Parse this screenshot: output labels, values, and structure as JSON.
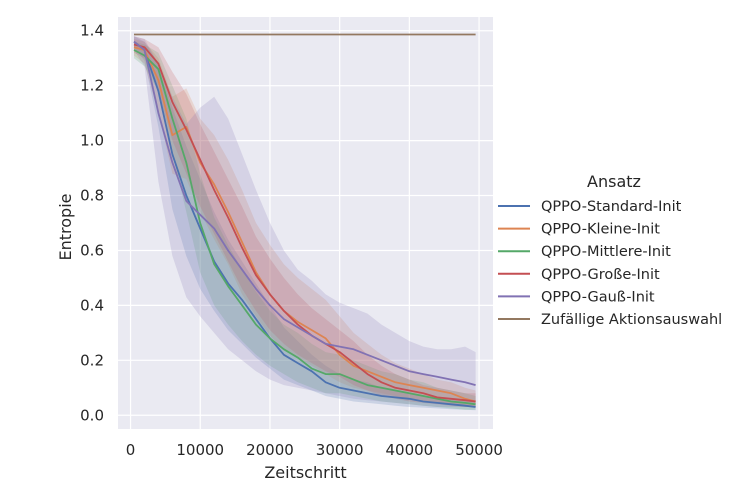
{
  "chart_data": {
    "type": "line",
    "xlabel": "Zeitschritt",
    "ylabel": "Entropie",
    "xlim": [
      -1800,
      52000
    ],
    "ylim": [
      -0.05,
      1.45
    ],
    "xticks": [
      0,
      10000,
      20000,
      30000,
      40000,
      50000
    ],
    "yticks": [
      0.0,
      0.2,
      0.4,
      0.6,
      0.8,
      1.0,
      1.2,
      1.4
    ],
    "grid": true,
    "background": "#EAEAF2",
    "legend": {
      "title": "Ansatz",
      "position": "right-outside"
    },
    "x": [
      500,
      2000,
      4000,
      6000,
      8000,
      10000,
      12000,
      14000,
      16000,
      18000,
      20000,
      22000,
      24000,
      26000,
      28000,
      30000,
      32000,
      34000,
      36000,
      38000,
      40000,
      42000,
      44000,
      46000,
      48000,
      49500
    ],
    "series": [
      {
        "name": "QPPO-Standard-Init",
        "color": "#4C72B0",
        "values": [
          1.36,
          1.33,
          1.18,
          0.95,
          0.8,
          0.68,
          0.56,
          0.48,
          0.42,
          0.35,
          0.28,
          0.22,
          0.19,
          0.16,
          0.12,
          0.1,
          0.09,
          0.08,
          0.07,
          0.065,
          0.06,
          0.05,
          0.045,
          0.04,
          0.035,
          0.03
        ],
        "lower": [
          1.34,
          1.29,
          1.05,
          0.75,
          0.58,
          0.46,
          0.38,
          0.31,
          0.26,
          0.21,
          0.17,
          0.13,
          0.11,
          0.09,
          0.07,
          0.06,
          0.05,
          0.045,
          0.04,
          0.035,
          0.03,
          0.028,
          0.025,
          0.022,
          0.02,
          0.018
        ],
        "upper": [
          1.38,
          1.36,
          1.28,
          1.12,
          0.98,
          0.86,
          0.74,
          0.64,
          0.56,
          0.48,
          0.4,
          0.32,
          0.27,
          0.22,
          0.18,
          0.15,
          0.13,
          0.12,
          0.1,
          0.09,
          0.08,
          0.07,
          0.065,
          0.06,
          0.055,
          0.05
        ]
      },
      {
        "name": "QPPO-Kleine-Init",
        "color": "#DD8452",
        "values": [
          1.34,
          1.33,
          1.22,
          1.02,
          1.05,
          0.92,
          0.84,
          0.74,
          0.63,
          0.52,
          0.44,
          0.38,
          0.34,
          0.31,
          0.28,
          0.22,
          0.18,
          0.16,
          0.14,
          0.12,
          0.11,
          0.1,
          0.09,
          0.08,
          0.06,
          0.05
        ],
        "lower": [
          1.31,
          1.28,
          1.1,
          0.88,
          0.86,
          0.74,
          0.64,
          0.55,
          0.44,
          0.36,
          0.29,
          0.24,
          0.21,
          0.18,
          0.15,
          0.12,
          0.1,
          0.09,
          0.08,
          0.07,
          0.06,
          0.05,
          0.045,
          0.04,
          0.035,
          0.03
        ],
        "upper": [
          1.37,
          1.36,
          1.3,
          1.16,
          1.19,
          1.08,
          1.02,
          0.93,
          0.82,
          0.7,
          0.62,
          0.55,
          0.5,
          0.46,
          0.42,
          0.36,
          0.3,
          0.26,
          0.22,
          0.19,
          0.17,
          0.15,
          0.13,
          0.12,
          0.1,
          0.09
        ]
      },
      {
        "name": "QPPO-Mittlere-Init",
        "color": "#55A868",
        "values": [
          1.33,
          1.31,
          1.26,
          1.08,
          0.92,
          0.7,
          0.55,
          0.47,
          0.4,
          0.33,
          0.28,
          0.24,
          0.21,
          0.17,
          0.15,
          0.15,
          0.13,
          0.11,
          0.1,
          0.09,
          0.08,
          0.07,
          0.06,
          0.05,
          0.045,
          0.04
        ],
        "lower": [
          1.3,
          1.27,
          1.18,
          0.95,
          0.74,
          0.52,
          0.4,
          0.33,
          0.27,
          0.22,
          0.18,
          0.15,
          0.12,
          0.1,
          0.08,
          0.08,
          0.07,
          0.06,
          0.05,
          0.045,
          0.04,
          0.035,
          0.03,
          0.025,
          0.02,
          0.02
        ],
        "upper": [
          1.36,
          1.35,
          1.32,
          1.2,
          1.08,
          0.88,
          0.72,
          0.62,
          0.53,
          0.45,
          0.38,
          0.33,
          0.3,
          0.26,
          0.23,
          0.22,
          0.2,
          0.18,
          0.16,
          0.15,
          0.13,
          0.12,
          0.1,
          0.09,
          0.08,
          0.07
        ]
      },
      {
        "name": "QPPO-Große-Init",
        "color": "#C44E52",
        "values": [
          1.35,
          1.34,
          1.28,
          1.14,
          1.04,
          0.93,
          0.82,
          0.72,
          0.61,
          0.51,
          0.44,
          0.38,
          0.33,
          0.29,
          0.26,
          0.23,
          0.19,
          0.15,
          0.12,
          0.1,
          0.09,
          0.08,
          0.065,
          0.06,
          0.055,
          0.05
        ],
        "lower": [
          1.32,
          1.3,
          1.18,
          1.0,
          0.88,
          0.76,
          0.66,
          0.56,
          0.46,
          0.38,
          0.31,
          0.26,
          0.22,
          0.19,
          0.16,
          0.14,
          0.11,
          0.09,
          0.07,
          0.06,
          0.05,
          0.045,
          0.04,
          0.035,
          0.03,
          0.03
        ],
        "upper": [
          1.38,
          1.37,
          1.34,
          1.25,
          1.17,
          1.06,
          0.96,
          0.86,
          0.76,
          0.65,
          0.57,
          0.5,
          0.44,
          0.39,
          0.35,
          0.31,
          0.27,
          0.22,
          0.18,
          0.15,
          0.13,
          0.11,
          0.1,
          0.09,
          0.08,
          0.08
        ]
      },
      {
        "name": "QPPO-Gauß-Init",
        "color": "#8172B3",
        "values": [
          1.36,
          1.33,
          1.1,
          0.92,
          0.78,
          0.73,
          0.68,
          0.6,
          0.53,
          0.46,
          0.4,
          0.35,
          0.32,
          0.29,
          0.26,
          0.25,
          0.24,
          0.22,
          0.2,
          0.18,
          0.16,
          0.15,
          0.14,
          0.13,
          0.12,
          0.11
        ],
        "lower": [
          1.33,
          1.27,
          0.85,
          0.58,
          0.43,
          0.36,
          0.3,
          0.24,
          0.2,
          0.16,
          0.13,
          0.11,
          0.1,
          0.09,
          0.08,
          0.07,
          0.06,
          0.055,
          0.05,
          0.045,
          0.04,
          0.035,
          0.03,
          0.03,
          0.03,
          0.03
        ],
        "upper": [
          1.38,
          1.37,
          1.28,
          1.16,
          1.06,
          1.12,
          1.16,
          1.08,
          0.95,
          0.82,
          0.7,
          0.6,
          0.53,
          0.49,
          0.44,
          0.41,
          0.39,
          0.37,
          0.33,
          0.3,
          0.27,
          0.25,
          0.24,
          0.24,
          0.25,
          0.23
        ]
      },
      {
        "name": "Zufällige Aktionsauswahl",
        "color": "#937860",
        "values": [
          1.3863,
          1.3863,
          1.3863,
          1.3863,
          1.3863,
          1.3863,
          1.3863,
          1.3863,
          1.3863,
          1.3863,
          1.3863,
          1.3863,
          1.3863,
          1.3863,
          1.3863,
          1.3863,
          1.3863,
          1.3863,
          1.3863,
          1.3863,
          1.3863,
          1.3863,
          1.3863,
          1.3863,
          1.3863,
          1.3863
        ]
      }
    ]
  }
}
